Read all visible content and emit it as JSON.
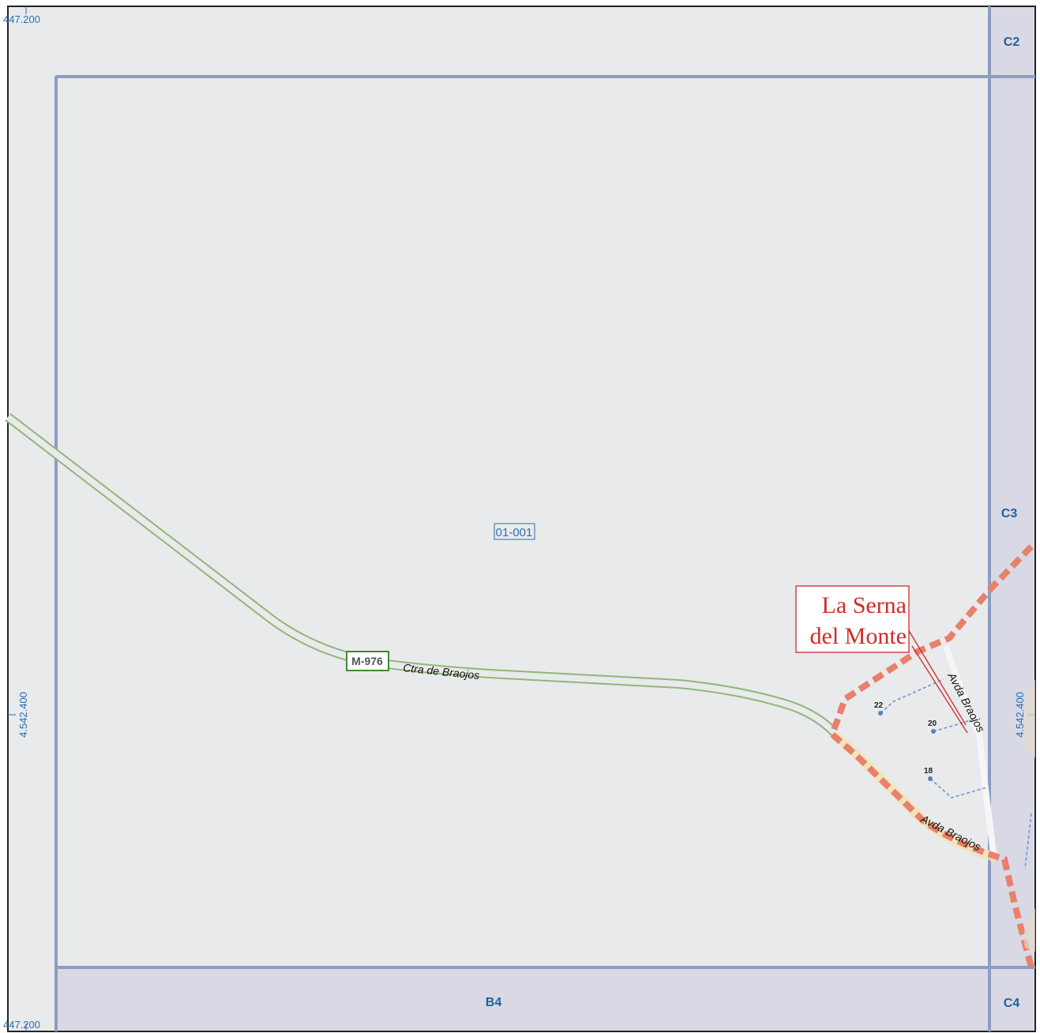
{
  "coordinates": {
    "top_left": "447.200",
    "bottom_left": "447.200",
    "left_middle": "4.542.400",
    "right_middle": "4.542.400"
  },
  "grid_labels": {
    "c2": "C2",
    "c3": "C3",
    "c4": "C4",
    "b4": "B4"
  },
  "sheet_code": "01-001",
  "road_badge": "M-976",
  "streets": {
    "ctra_braojos": "Ctra de Braojos",
    "avda_braojos_vertical": "Avda Braojos",
    "avda_braojos_lower": "Avda Braojos"
  },
  "house_numbers": {
    "n22": "22",
    "n20": "20",
    "n18": "18"
  },
  "place_name": {
    "line1": "La Serna",
    "line2": "del Monte"
  },
  "colors": {
    "background": "#e9eaec",
    "adjacent_sheet": "#d8d9e4",
    "grid_line": "#8c9cc4",
    "road_green": "#90b777",
    "boundary": "#e8806a",
    "road_badge": "#3f8a2e",
    "place_red": "#d12a2a",
    "coord_blue": "#2a6fb0"
  }
}
